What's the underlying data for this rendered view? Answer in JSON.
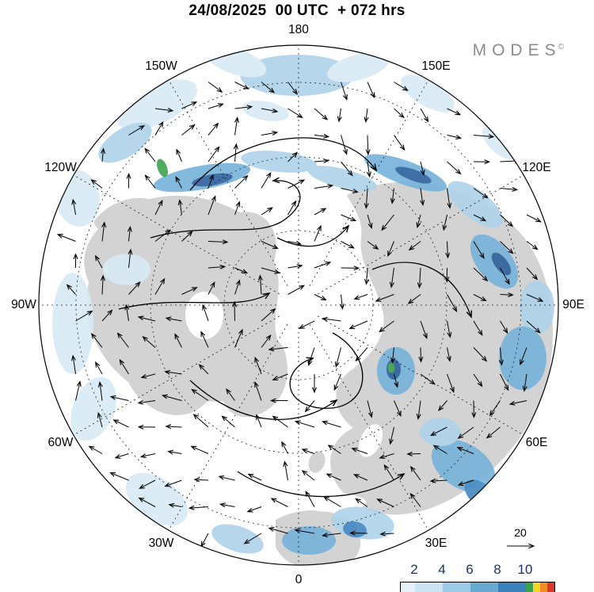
{
  "header": {
    "title": "24/08/2025  00 UTC  + 072 hrs"
  },
  "brand": {
    "display": "MODES",
    "mark": "©"
  },
  "map": {
    "projection": "North polar stereographic",
    "lon_labels": [
      {
        "text": "180",
        "angle": 0
      },
      {
        "text": "150E",
        "angle": 30
      },
      {
        "text": "120E",
        "angle": 60
      },
      {
        "text": "90E",
        "angle": 90
      },
      {
        "text": "60E",
        "angle": 120
      },
      {
        "text": "30E",
        "angle": 150
      },
      {
        "text": "0",
        "angle": 180
      },
      {
        "text": "30W",
        "angle": 210
      },
      {
        "text": "60W",
        "angle": 240
      },
      {
        "text": "90W",
        "angle": 270
      },
      {
        "text": "120W",
        "angle": 300
      },
      {
        "text": "150W",
        "angle": 330
      }
    ]
  },
  "legend": {
    "ref_arrow_label": "20",
    "ticks": [
      "2",
      "4",
      "6",
      "8",
      "10"
    ],
    "colorbar_colors": [
      "#e6f1f9",
      "#cbe3f2",
      "#9cc9e5",
      "#69aad3",
      "#3b82bd",
      "#3aa24f",
      "#f2d327",
      "#f28c26",
      "#d93a2b"
    ],
    "tick_color": "#1c2f6b"
  },
  "palette": {
    "land": "#d3d3d3",
    "shade_light": "#d9eaf5",
    "shade_medium": "#aed2ea",
    "shade_strong": "#74b2d8",
    "shade_heavy": "#4187c1",
    "shade_dark": "#2a5f9b",
    "shade_green": "#3aa24f"
  }
}
